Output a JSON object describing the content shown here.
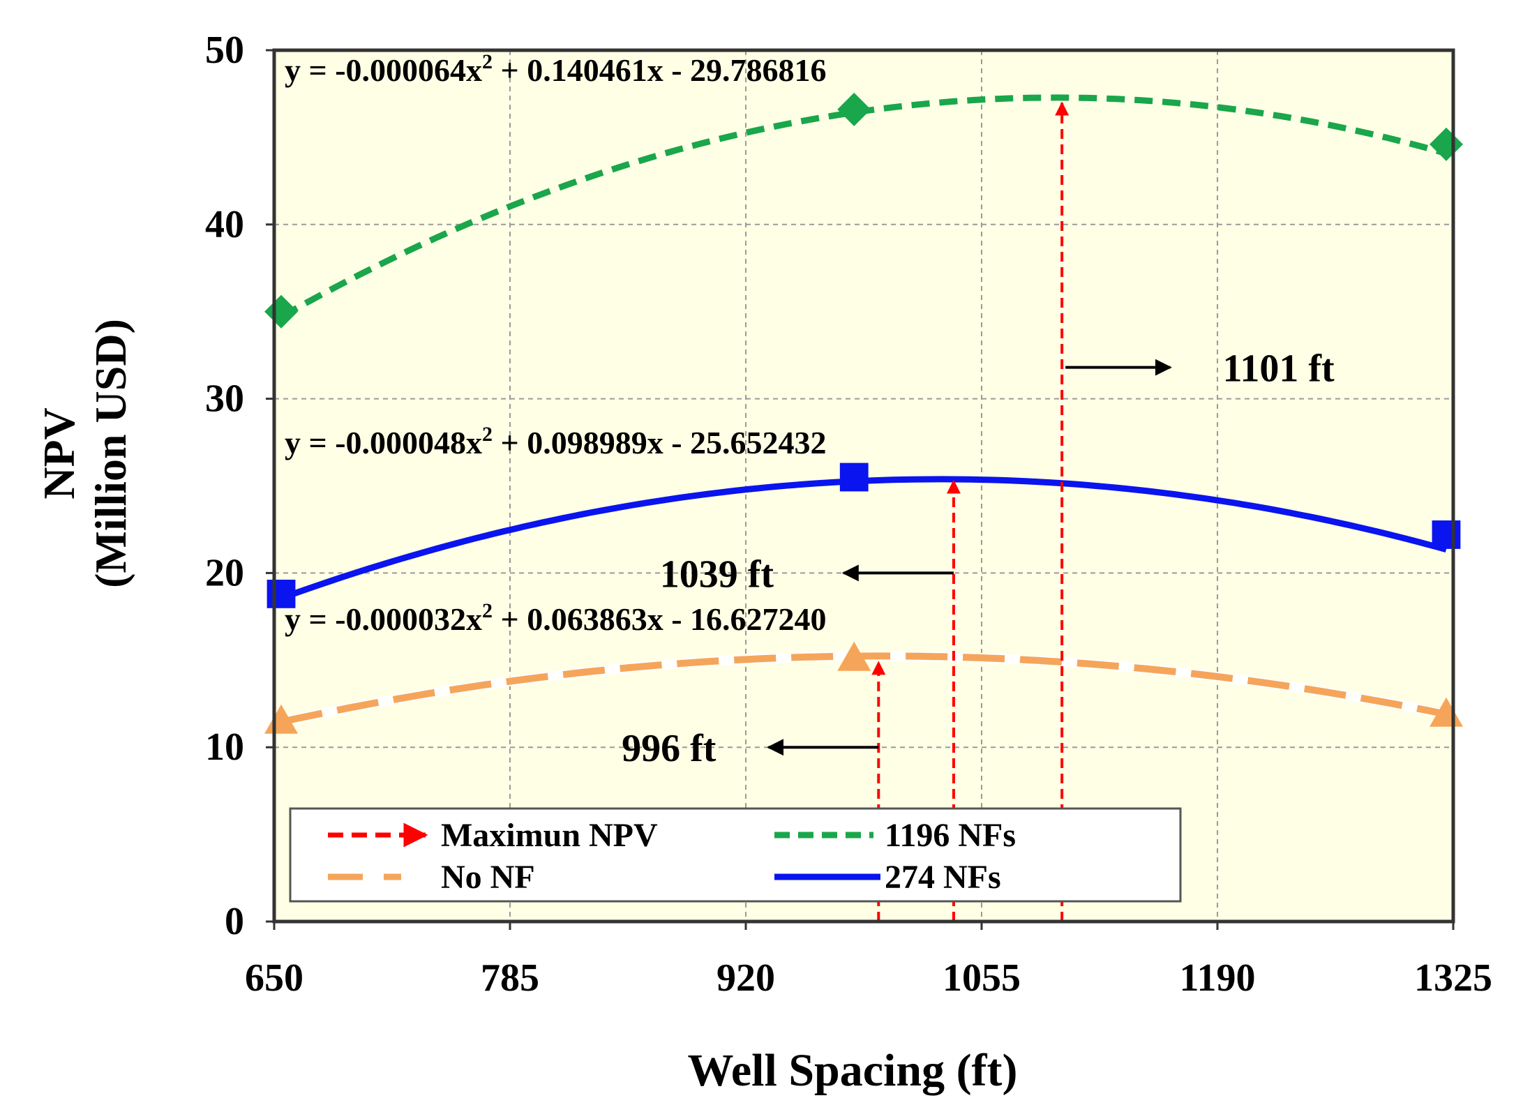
{
  "chart_data": {
    "type": "line",
    "xlabel": "Well Spacing (ft)",
    "ylabel_line1": "NPV",
    "ylabel_line2": "(Million USD)",
    "xlim": [
      650,
      1325
    ],
    "ylim": [
      0,
      50
    ],
    "xticks": [
      650,
      785,
      920,
      1055,
      1190,
      1325
    ],
    "yticks": [
      0,
      10,
      20,
      30,
      40,
      50
    ],
    "grid": true,
    "plot_background": "#ffffe6",
    "series": [
      {
        "name": "1196 NFs",
        "color": "#1aa64b",
        "style": "dashed",
        "marker": "diamond",
        "coef": [
          -6.4e-05,
          0.140461,
          -29.786816
        ],
        "equation": "y = -0.000064x² + 0.140461x - 29.786816",
        "x": [
          654,
          982,
          1321
        ],
        "y": [
          35.0,
          46.6,
          44.6
        ]
      },
      {
        "name": "274 NFs",
        "color": "#0a14ee",
        "style": "solid",
        "marker": "square",
        "coef": [
          -4.8e-05,
          0.098989,
          -25.652432
        ],
        "equation": "y = -0.000048x² + 0.098989x - 25.652432",
        "x": [
          654,
          982,
          1321
        ],
        "y": [
          18.8,
          25.5,
          22.2
        ]
      },
      {
        "name": "No NF",
        "color": "#f5a55a",
        "style": "longdash",
        "marker": "triangle",
        "coef": [
          -3.2e-05,
          0.063863,
          -16.62724
        ],
        "equation": "y = -0.000032x² + 0.063863x - 16.627240",
        "x": [
          654,
          982,
          1321
        ],
        "y": [
          11.5,
          15.1,
          11.9
        ]
      }
    ],
    "maxima": [
      {
        "x": 996,
        "y": 15.2,
        "label": "996 ft",
        "arrow_y": 10.0,
        "arrow_from": 996,
        "arrow_to": 933,
        "label_x": 903
      },
      {
        "x": 1039,
        "y": 25.6,
        "label": "1039 ft",
        "arrow_y": 20.0,
        "arrow_from": 1039,
        "arrow_to": 976,
        "label_x": 936
      },
      {
        "x": 1101,
        "y": 47.3,
        "label": "1101 ft",
        "arrow_y": 31.8,
        "arrow_from": 1103,
        "arrow_to": 1163,
        "label_x": 1193
      }
    ],
    "max_arrow_color": "#ff0000",
    "legend": {
      "position": "bottom-left",
      "entries": [
        {
          "label": "Maximun NPV",
          "kind": "max-arrow"
        },
        {
          "label": "1196 NFs",
          "kind": "series",
          "series": 0
        },
        {
          "label": "No NF",
          "kind": "series",
          "series": 2
        },
        {
          "label": "274 NFs",
          "kind": "series",
          "series": 1
        }
      ]
    }
  }
}
